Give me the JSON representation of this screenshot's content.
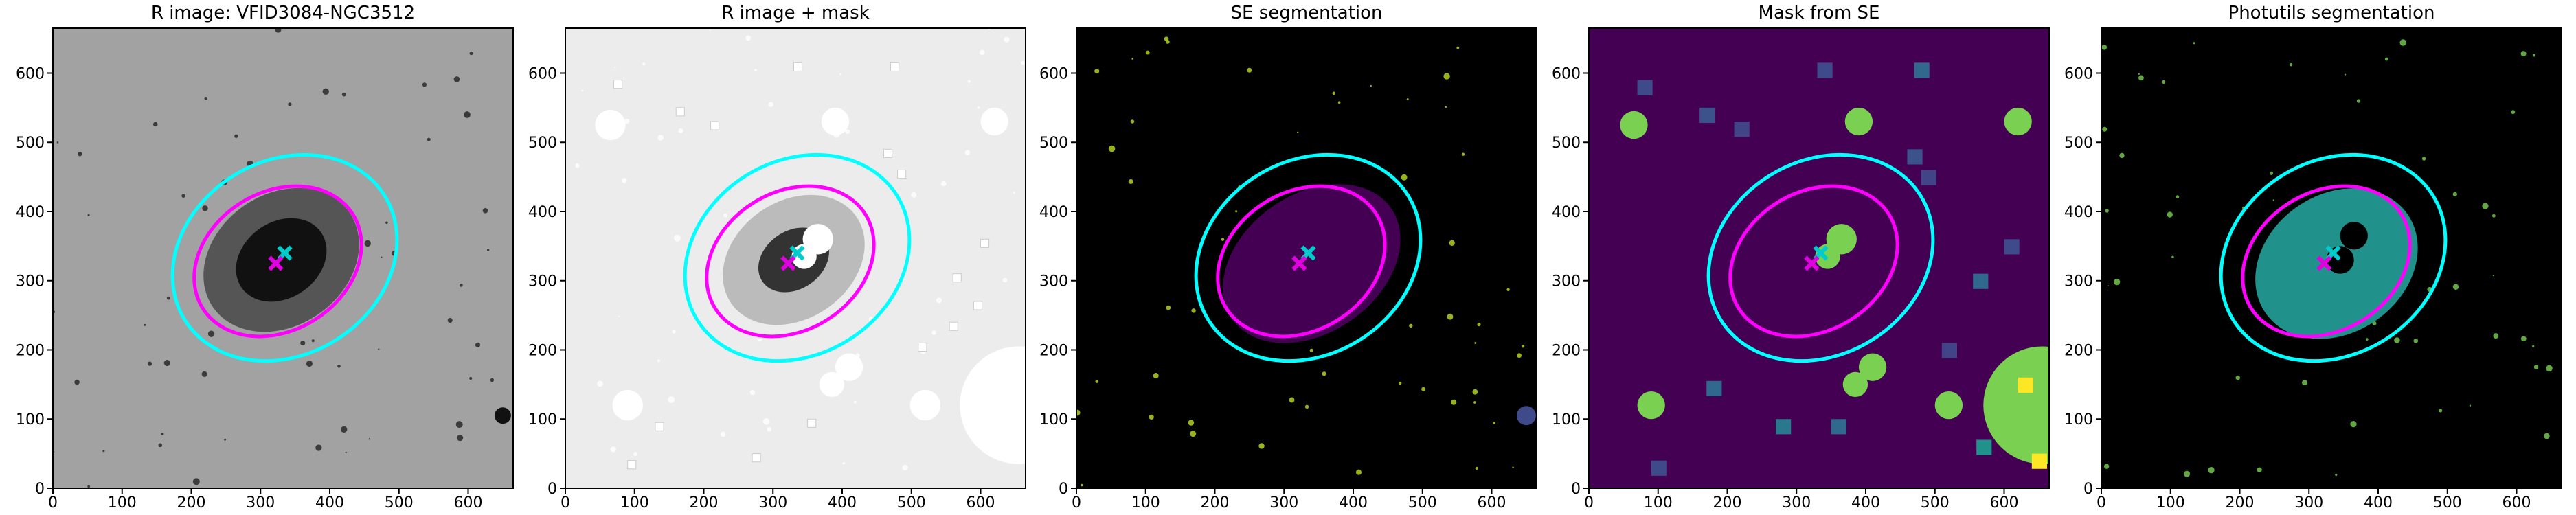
{
  "chart_data": [
    {
      "type": "image",
      "title": "R image: VFID3084-NGC3512",
      "xlim": [
        0,
        665
      ],
      "ylim": [
        0,
        665
      ],
      "xticks": [
        0,
        100,
        200,
        300,
        400,
        500,
        600
      ],
      "yticks": [
        0,
        100,
        200,
        300,
        400,
        500,
        600
      ]
    },
    {
      "type": "image",
      "title": "R image + mask",
      "xlim": [
        0,
        665
      ],
      "ylim": [
        0,
        665
      ],
      "xticks": [
        0,
        100,
        200,
        300,
        400,
        500,
        600
      ],
      "yticks": [
        0,
        100,
        200,
        300,
        400,
        500,
        600
      ]
    },
    {
      "type": "image",
      "title": "SE segmentation",
      "xlim": [
        0,
        665
      ],
      "ylim": [
        0,
        665
      ],
      "xticks": [
        0,
        100,
        200,
        300,
        400,
        500,
        600
      ],
      "yticks": [
        0,
        100,
        200,
        300,
        400,
        500,
        600
      ]
    },
    {
      "type": "image",
      "title": "Mask from SE",
      "xlim": [
        0,
        665
      ],
      "ylim": [
        0,
        665
      ],
      "xticks": [
        0,
        100,
        200,
        300,
        400,
        500,
        600
      ],
      "yticks": [
        0,
        100,
        200,
        300,
        400,
        500,
        600
      ]
    },
    {
      "type": "image",
      "title": "Photutils segmentation",
      "xlim": [
        0,
        665
      ],
      "ylim": [
        0,
        665
      ],
      "xticks": [
        0,
        100,
        200,
        300,
        400,
        500,
        600
      ],
      "yticks": [
        0,
        100,
        200,
        300,
        400,
        500,
        600
      ]
    }
  ]
}
